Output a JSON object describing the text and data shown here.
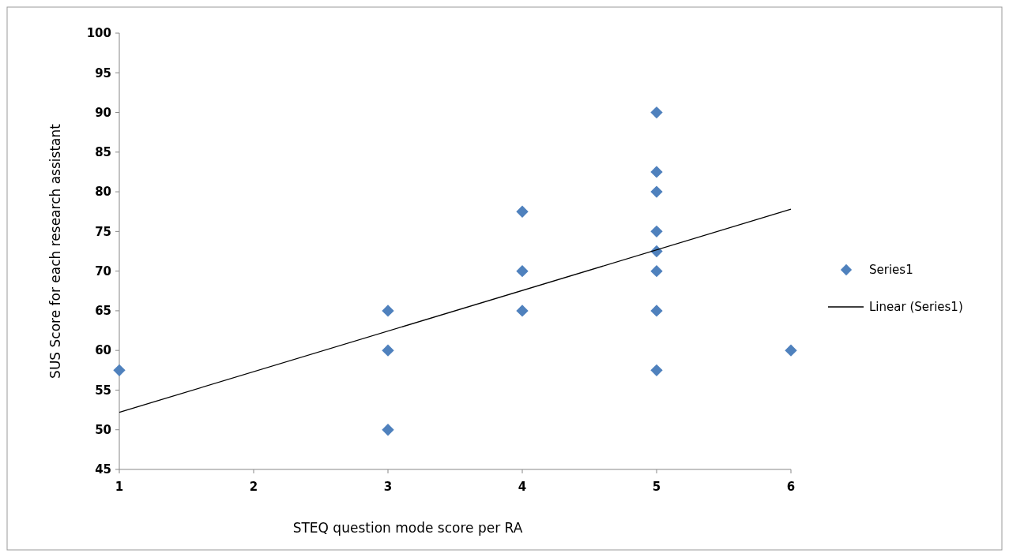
{
  "chart_data": {
    "type": "scatter",
    "xlabel": "STEQ  question mode score per RA",
    "ylabel": "SUS Score for each research assistant",
    "xlim": [
      1,
      6
    ],
    "xticks": [
      1,
      2,
      3,
      4,
      5,
      6
    ],
    "ylim": [
      45,
      100
    ],
    "yticks": [
      45,
      50,
      55,
      60,
      65,
      70,
      75,
      80,
      85,
      90,
      95,
      100
    ],
    "grid": false,
    "legend": "right",
    "series": [
      {
        "name": "Series1",
        "marker": "diamond",
        "color": "#4f81bd",
        "x": [
          1,
          3,
          3,
          3,
          4,
          4,
          4,
          5,
          5,
          5,
          5,
          5,
          5,
          5,
          5,
          6
        ],
        "values": [
          57.5,
          65,
          60,
          50,
          77.5,
          70,
          65,
          90,
          82.5,
          80,
          75,
          72.5,
          70,
          65,
          57.5,
          60
        ]
      },
      {
        "name": "Linear (Series1)",
        "type": "line",
        "marker": "none",
        "color": "#000000",
        "x": [
          1,
          6
        ],
        "values": [
          52.2,
          77.8
        ]
      }
    ]
  }
}
